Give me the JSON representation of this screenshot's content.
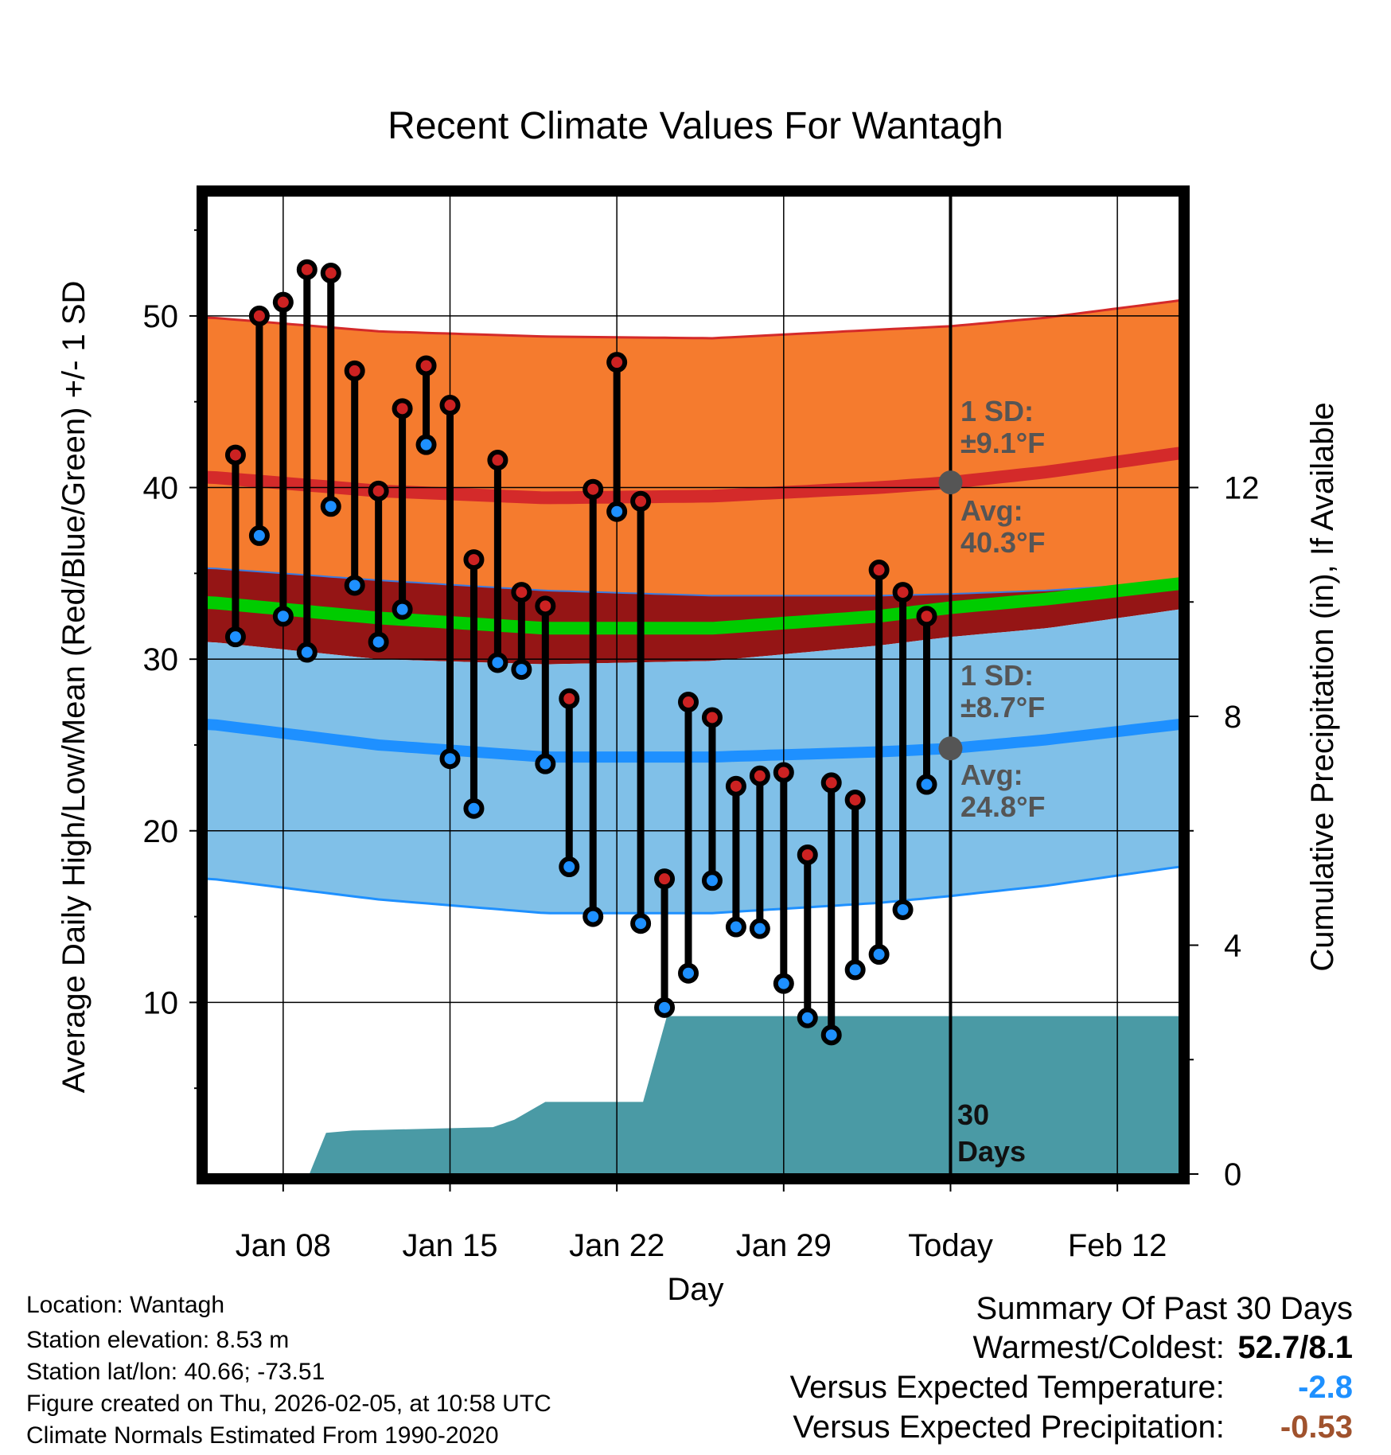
{
  "chart_data": {
    "type": "line",
    "title": "Recent Climate Values For Wantagh",
    "xlabel": "Day",
    "ylabel_left": "Average Daily High/Low/Mean (Red/Blue/Green) +/- 1 SD",
    "ylabel_right": "Cumulative Precipitation (in), If Available",
    "ylim_left": [
      0,
      57
    ],
    "ylim_right": [
      0,
      17.1
    ],
    "y_ticks_left": [
      "10",
      "20",
      "30",
      "40",
      "50"
    ],
    "y_ticks_right": [
      "0",
      "4",
      "8",
      "12"
    ],
    "x_tick_labels": [
      "Jan 08",
      "Jan 15",
      "Jan 22",
      "Jan 29",
      "Today",
      "Feb 12"
    ],
    "x_tick_days": [
      -28,
      -21,
      -14,
      -7,
      0,
      7
    ],
    "x_range_days": [
      -31.2,
      9.6
    ],
    "today_line_day": 0,
    "normals": {
      "days": [
        -31,
        -24,
        -17,
        -10,
        -3,
        0,
        4,
        9.6
      ],
      "high_avg": [
        40.6,
        39.8,
        39.4,
        39.5,
        40.0,
        40.3,
        40.9,
        42.0
      ],
      "high_upper": [
        49.9,
        49.1,
        48.8,
        48.7,
        49.2,
        49.4,
        49.9,
        50.9
      ],
      "high_lower": [
        35.3,
        34.6,
        34.0,
        33.7,
        33.7,
        33.8,
        34.0,
        34.5
      ],
      "mean_avg": [
        33.3,
        32.4,
        31.8,
        31.8,
        32.5,
        33.0,
        33.5,
        34.4
      ],
      "low_avg": [
        26.2,
        25.0,
        24.3,
        24.3,
        24.6,
        24.8,
        25.3,
        26.2
      ],
      "low_upper": [
        31.0,
        30.0,
        29.7,
        29.9,
        30.8,
        31.3,
        31.8,
        32.9
      ],
      "low_lower": [
        17.2,
        16.0,
        15.2,
        15.2,
        15.8,
        16.2,
        16.8,
        17.9
      ]
    },
    "series": [
      {
        "name": "Daily High",
        "color": "#cc2222",
        "days": [
          -30,
          -29,
          -28,
          -27,
          -26,
          -25,
          -24,
          -23,
          -22,
          -21,
          -20,
          -19,
          -18,
          -17,
          -16,
          -15,
          -14,
          -13,
          -12,
          -11,
          -10,
          -9,
          -8,
          -7,
          -6,
          -5,
          -4,
          -3,
          -2,
          -1
        ],
        "values": [
          41.9,
          50.0,
          50.8,
          52.7,
          52.5,
          46.8,
          39.8,
          44.6,
          47.1,
          44.8,
          35.8,
          41.6,
          33.9,
          33.1,
          27.7,
          39.9,
          47.3,
          39.2,
          17.2,
          27.5,
          26.6,
          22.6,
          23.2,
          23.4,
          18.6,
          22.8,
          21.8,
          35.2,
          33.9,
          32.5
        ]
      },
      {
        "name": "Daily Low",
        "color": "#1e90ff",
        "days": [
          -30,
          -29,
          -28,
          -27,
          -26,
          -25,
          -24,
          -23,
          -22,
          -21,
          -20,
          -19,
          -18,
          -17,
          -16,
          -15,
          -14,
          -13,
          -12,
          -11,
          -10,
          -9,
          -8,
          -7,
          -6,
          -5,
          -4,
          -3,
          -2,
          -1
        ],
        "values": [
          31.3,
          37.2,
          32.5,
          30.4,
          38.9,
          34.3,
          31.0,
          32.9,
          42.5,
          24.2,
          21.3,
          29.8,
          29.4,
          23.9,
          17.9,
          15.0,
          38.6,
          14.6,
          9.7,
          11.7,
          17.1,
          14.4,
          14.3,
          11.1,
          9.1,
          8.1,
          11.9,
          12.8,
          15.4,
          22.7
        ]
      }
    ],
    "precip": {
      "days": [
        -31.2,
        -26.9,
        -26.2,
        -25.1,
        -21.1,
        -19.2,
        -18.3,
        -17.0,
        -12.9,
        -11.9,
        9.6
      ],
      "values": [
        0,
        0,
        0.72,
        0.76,
        0.8,
        0.82,
        0.95,
        1.26,
        1.26,
        2.76,
        2.76
      ]
    },
    "annotations": {
      "high_sd_label": "1 SD:",
      "high_sd_value": "±9.1°F",
      "high_avg_label": "Avg:",
      "high_avg_value": "40.3°F",
      "low_sd_label": "1 SD:",
      "low_sd_value": "±8.7°F",
      "low_avg_label": "Avg:",
      "low_avg_value": "24.8°F",
      "days_label_1": "30",
      "days_label_2": "Days"
    }
  },
  "info": {
    "location": "Location: Wantagh",
    "elevation": "Station elevation: 8.53 m",
    "latlon": "Station lat/lon: 40.66; -73.51",
    "created": "Figure created on Thu, 2026-02-05, at 10:58 UTC",
    "normals": "Climate Normals Estimated From 1990-2020"
  },
  "summary": {
    "title": "Summary Of Past 30 Days",
    "warmest_label": "Warmest/Coldest:",
    "warmest_value": "52.7/8.1",
    "temp_label": "Versus Expected Temperature:",
    "temp_value": "-2.8",
    "temp_color": "#1e90ff",
    "precip_label": "Versus Expected Precipitation:",
    "precip_value": "-0.53",
    "precip_color": "#a0522d"
  }
}
